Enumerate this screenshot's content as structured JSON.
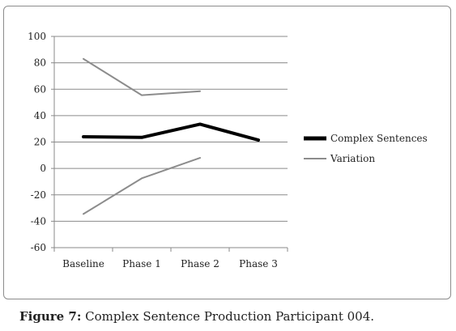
{
  "caption": {
    "label": "Figure 7:",
    "text": "Complex Sentence Production Participant 004."
  },
  "chart_data": {
    "type": "line",
    "categories": [
      "Baseline",
      "Phase 1",
      "Phase 2",
      "Phase 3"
    ],
    "ylim": [
      -60,
      100
    ],
    "yticks": [
      100,
      80,
      60,
      40,
      20,
      0,
      -20,
      -40,
      -60
    ],
    "grid": true,
    "legend_position": "right",
    "series": [
      {
        "name": "Complex Sentences",
        "values": [
          24,
          23.5,
          33.5,
          21.5
        ],
        "color": "#000000"
      },
      {
        "name": "Variation",
        "values": [
          83,
          55.5,
          58.5,
          null
        ],
        "color": "#8c8c8c"
      },
      {
        "name": "",
        "values": [
          -34.5,
          -7.5,
          8,
          null
        ],
        "color": "#8c8c8c"
      }
    ]
  }
}
